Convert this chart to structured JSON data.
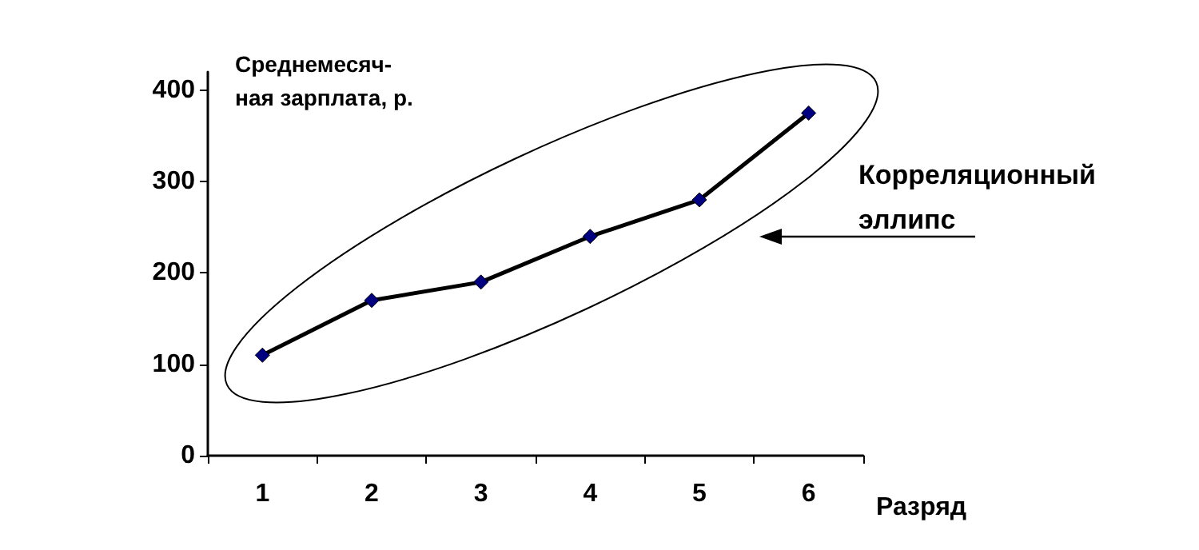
{
  "chart_data": {
    "type": "line",
    "ylabel": "Среднемесяч-\nная зарплата, р.",
    "xlabel": "Разряд",
    "categories": [
      "1",
      "2",
      "3",
      "4",
      "5",
      "6"
    ],
    "series": [
      {
        "color": "#000080",
        "values": [
          110,
          170,
          190,
          240,
          280,
          375
        ]
      }
    ],
    "ylim": [
      0,
      420
    ],
    "yticks": [
      0,
      100,
      200,
      300,
      400
    ],
    "marker": "diamond",
    "line_style": "solid",
    "annotations": [
      "Корреляционный\nэллипс"
    ]
  }
}
